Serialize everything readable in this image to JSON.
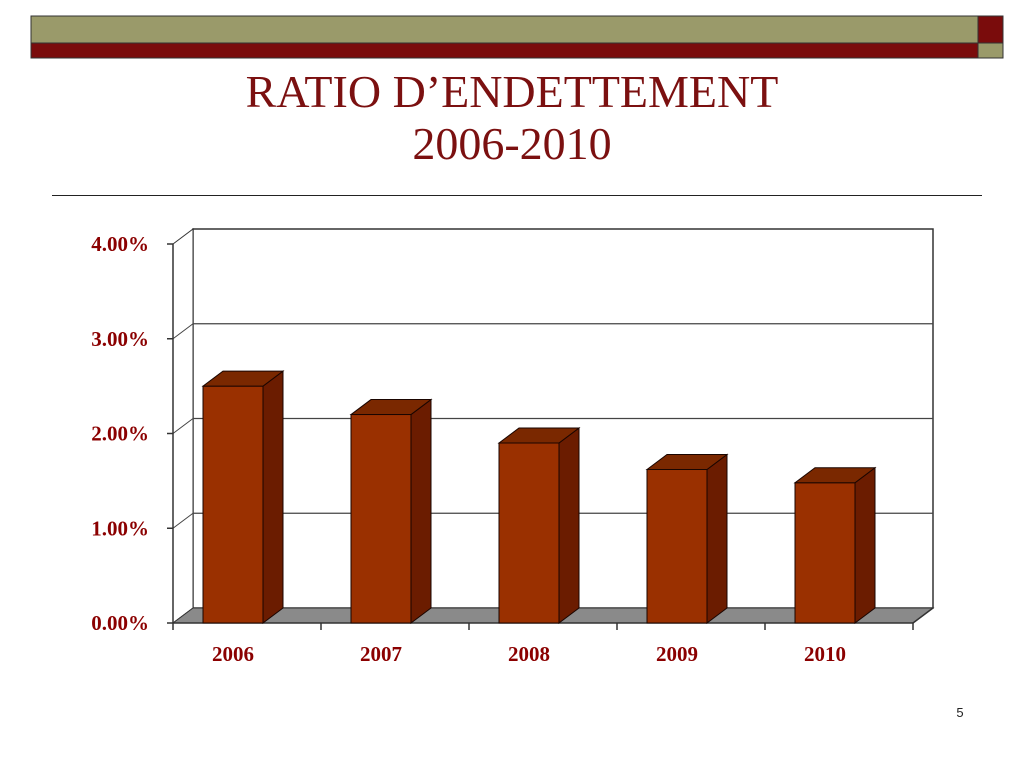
{
  "slide": {
    "title_line1": "RATIO D’ENDETTEMENT",
    "title_line2": "2006-2010",
    "number": "5"
  },
  "colors": {
    "title": "#7b1010",
    "banner_olive": "#9a9a6a",
    "banner_maroon": "#7a0c0c",
    "bar_front": "#9a3000",
    "bar_side": "#6b1c00",
    "bar_top": "#7a2800",
    "floor": "#8a8a8a",
    "axis_text": "#8b0000"
  },
  "chart_data": {
    "type": "bar",
    "categories": [
      "2006",
      "2007",
      "2008",
      "2009",
      "2010"
    ],
    "values": [
      2.5,
      2.2,
      1.9,
      1.62,
      1.48
    ],
    "yticks": [
      "0.00%",
      "1.00%",
      "2.00%",
      "3.00%",
      "4.00%"
    ],
    "ylim": [
      0,
      4
    ],
    "grid": true,
    "three_d": true
  }
}
